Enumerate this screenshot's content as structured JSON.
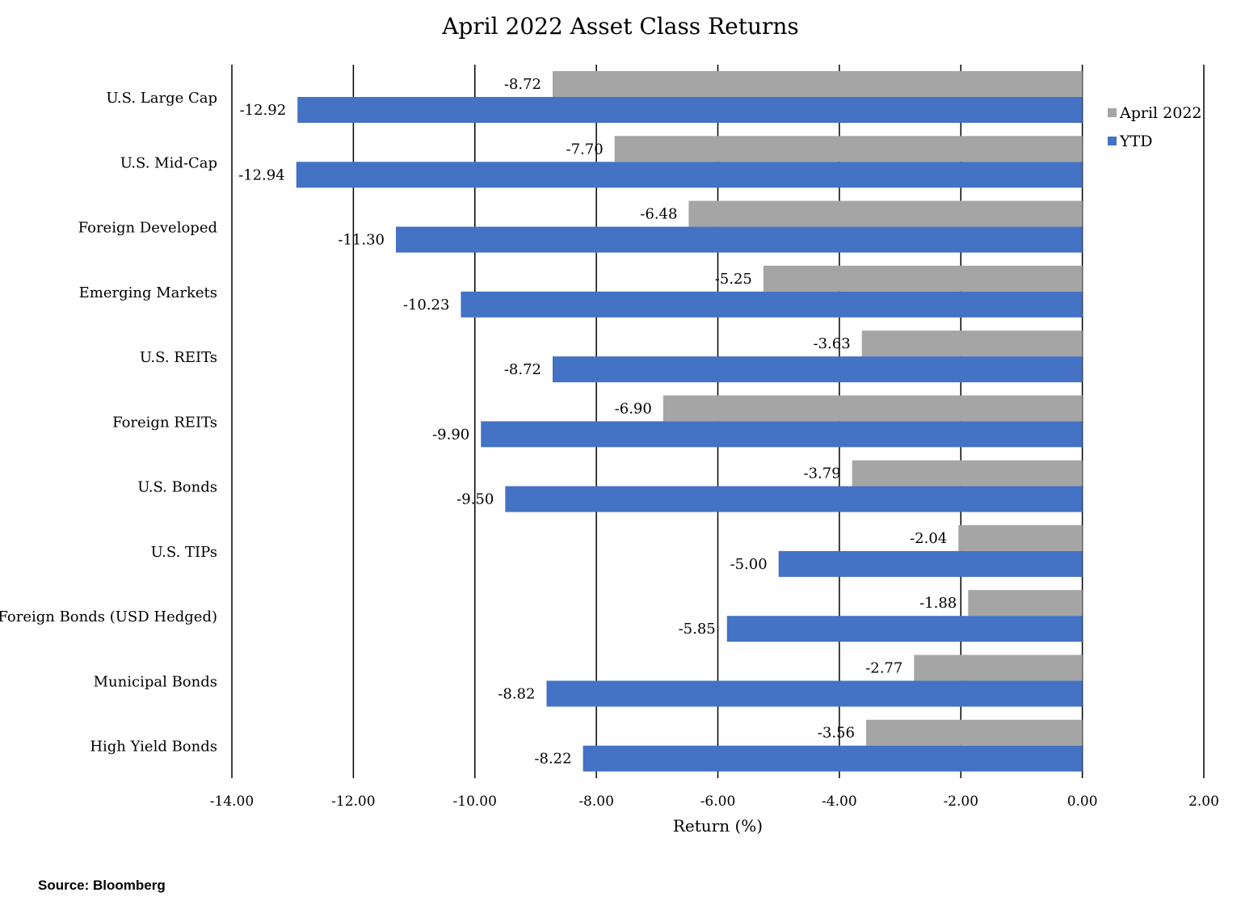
{
  "chart_data": {
    "type": "bar",
    "orientation": "horizontal",
    "title": "April 2022 Asset Class Returns",
    "xlabel": "Return (%)",
    "ylabel": "",
    "xlim": [
      -14,
      2
    ],
    "x_ticks": [
      "-14.00",
      "-12.00",
      "-10.00",
      "-8.00",
      "-6.00",
      "-4.00",
      "-2.00",
      "0.00",
      "2.00"
    ],
    "grid": "vertical",
    "legend_position": "right",
    "categories": [
      "U.S. Large Cap",
      "U.S.  Mid-Cap",
      "Foreign Developed",
      "Emerging Markets",
      "U.S. REITs",
      "Foreign REITs",
      "U.S. Bonds",
      "U.S. TIPs",
      "Foreign Bonds  (USD Hedged)",
      "Municipal Bonds",
      "High Yield Bonds"
    ],
    "series": [
      {
        "name": "April 2022",
        "color": "#a5a5a5",
        "values": [
          -8.72,
          -7.7,
          -6.48,
          -5.25,
          -3.63,
          -6.9,
          -3.79,
          -2.04,
          -1.88,
          -2.77,
          -3.56
        ],
        "labels": [
          "-8.72",
          "-7.70",
          "-6.48",
          "-5.25",
          "-3.63",
          "-6.90",
          "-3.79",
          "-2.04",
          "-1.88",
          "-2.77",
          "-3.56"
        ]
      },
      {
        "name": "YTD",
        "color": "#4472c4",
        "values": [
          -12.92,
          -12.94,
          -11.3,
          -10.23,
          -8.72,
          -9.9,
          -9.5,
          -5.0,
          -5.85,
          -8.82,
          -8.22
        ],
        "labels": [
          "-12.92",
          "-12.94",
          "-11.30",
          "-10.23",
          "-8.72",
          "-9.90",
          "-9.50",
          "-5.00",
          "-5.85",
          "-8.82",
          "-8.22"
        ]
      }
    ]
  },
  "source": "Source: Bloomberg"
}
